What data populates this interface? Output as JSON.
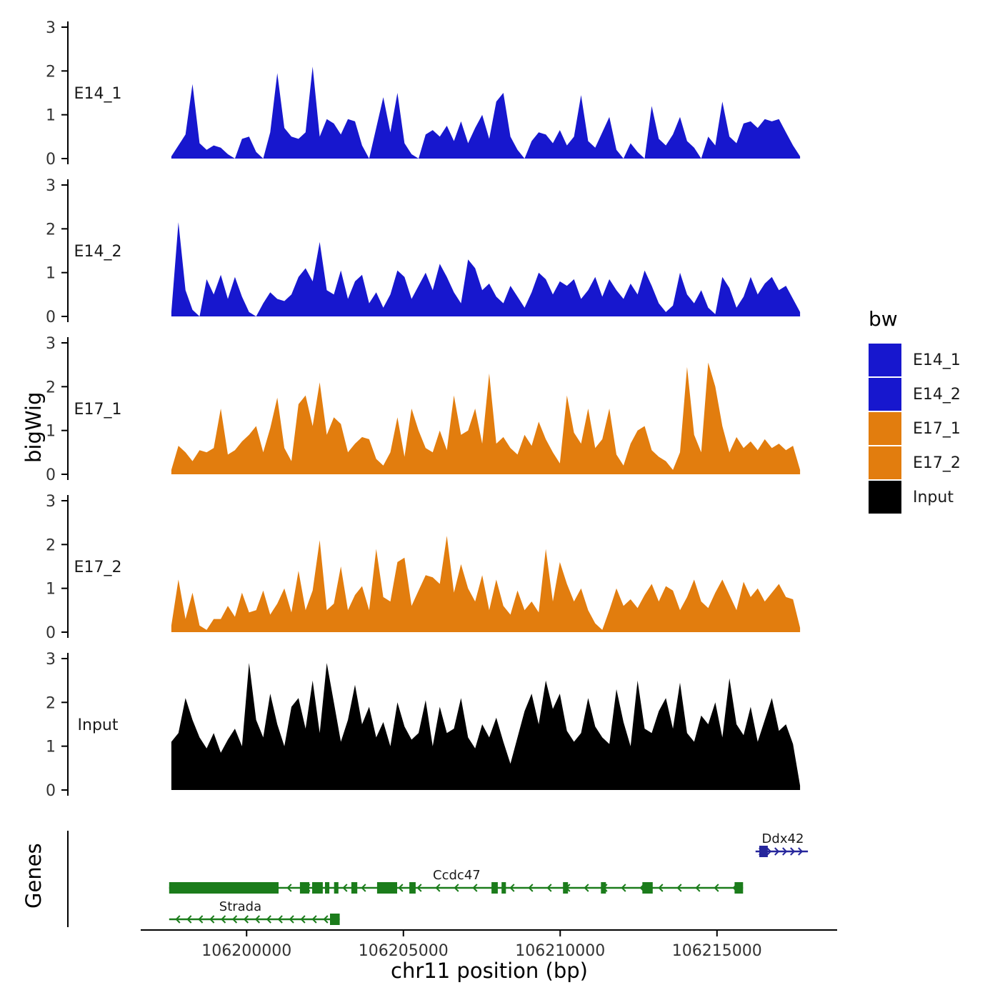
{
  "figure": {
    "ylabel": "bigWig",
    "genes_label": "Genes",
    "xlabel": "chr11 position (bp)"
  },
  "chart_data": {
    "type": "area",
    "title": "",
    "xlabel": "chr11 position (bp)",
    "ylabel": "bigWig",
    "ylim": [
      0,
      3
    ],
    "y_ticks": [
      0,
      1,
      2,
      3
    ],
    "xlim_bp": [
      106194300,
      106218900
    ],
    "signal_x_range_bp": [
      106197600,
      106217650
    ],
    "x_ticks": [
      {
        "bp": 106200000,
        "label": "106200000"
      },
      {
        "bp": 106205000,
        "label": "106205000"
      },
      {
        "bp": 106210000,
        "label": "106210000"
      },
      {
        "bp": 106215000,
        "label": "106215000"
      }
    ],
    "tracks": [
      {
        "name": "E14_1",
        "color": "#1717CE",
        "values": [
          0.05,
          0.3,
          0.55,
          1.7,
          0.35,
          0.2,
          0.3,
          0.25,
          0.1,
          0,
          0.45,
          0.5,
          0.15,
          0,
          0.6,
          1.95,
          0.7,
          0.5,
          0.45,
          0.6,
          2.1,
          0.5,
          0.9,
          0.8,
          0.55,
          0.9,
          0.85,
          0.3,
          0,
          0.7,
          1.4,
          0.6,
          1.5,
          0.35,
          0.1,
          0,
          0.55,
          0.65,
          0.5,
          0.75,
          0.4,
          0.85,
          0.35,
          0.7,
          1.0,
          0.45,
          1.3,
          1.5,
          0.5,
          0.2,
          0,
          0.4,
          0.6,
          0.55,
          0.35,
          0.65,
          0.3,
          0.5,
          1.45,
          0.4,
          0.25,
          0.6,
          0.95,
          0.2,
          0,
          0.35,
          0.15,
          0,
          1.2,
          0.45,
          0.3,
          0.55,
          0.95,
          0.4,
          0.25,
          0,
          0.5,
          0.3,
          1.3,
          0.5,
          0.35,
          0.8,
          0.85,
          0.7,
          0.9,
          0.85,
          0.9,
          0.6,
          0.3,
          0.05
        ]
      },
      {
        "name": "E14_2",
        "color": "#1717CE",
        "values": [
          0.1,
          2.15,
          0.6,
          0.15,
          0,
          0.85,
          0.5,
          0.95,
          0.4,
          0.9,
          0.45,
          0.1,
          0,
          0.3,
          0.55,
          0.4,
          0.35,
          0.5,
          0.9,
          1.1,
          0.8,
          1.7,
          0.6,
          0.5,
          1.05,
          0.4,
          0.8,
          0.95,
          0.3,
          0.55,
          0.2,
          0.5,
          1.05,
          0.9,
          0.4,
          0.7,
          1.0,
          0.6,
          1.2,
          0.9,
          0.55,
          0.3,
          1.3,
          1.1,
          0.6,
          0.75,
          0.45,
          0.3,
          0.7,
          0.45,
          0.2,
          0.55,
          1.0,
          0.85,
          0.5,
          0.8,
          0.7,
          0.85,
          0.4,
          0.6,
          0.9,
          0.45,
          0.85,
          0.6,
          0.4,
          0.75,
          0.5,
          1.05,
          0.7,
          0.3,
          0.1,
          0.25,
          1.0,
          0.5,
          0.3,
          0.6,
          0.2,
          0.05,
          0.9,
          0.65,
          0.2,
          0.45,
          0.9,
          0.5,
          0.75,
          0.9,
          0.6,
          0.7,
          0.4,
          0.1
        ]
      },
      {
        "name": "E17_1",
        "color": "#E27D0E",
        "values": [
          0.1,
          0.65,
          0.5,
          0.3,
          0.55,
          0.5,
          0.6,
          1.5,
          0.45,
          0.55,
          0.75,
          0.9,
          1.1,
          0.5,
          1.05,
          1.75,
          0.6,
          0.3,
          1.6,
          1.8,
          1.1,
          2.1,
          0.9,
          1.3,
          1.15,
          0.5,
          0.7,
          0.85,
          0.8,
          0.35,
          0.2,
          0.5,
          1.3,
          0.4,
          1.5,
          1.0,
          0.6,
          0.5,
          1.0,
          0.55,
          1.8,
          0.9,
          1.0,
          1.5,
          0.7,
          2.3,
          0.7,
          0.85,
          0.6,
          0.45,
          0.9,
          0.65,
          1.2,
          0.8,
          0.5,
          0.25,
          1.8,
          0.95,
          0.7,
          1.5,
          0.6,
          0.8,
          1.5,
          0.45,
          0.2,
          0.7,
          1.0,
          1.1,
          0.55,
          0.4,
          0.3,
          0.1,
          0.5,
          2.45,
          0.9,
          0.5,
          2.55,
          2.0,
          1.1,
          0.5,
          0.85,
          0.6,
          0.75,
          0.55,
          0.8,
          0.6,
          0.7,
          0.55,
          0.65,
          0.1
        ]
      },
      {
        "name": "E17_2",
        "color": "#E27D0E",
        "values": [
          0.15,
          1.2,
          0.3,
          0.9,
          0.15,
          0.05,
          0.3,
          0.3,
          0.6,
          0.35,
          0.9,
          0.45,
          0.5,
          0.95,
          0.4,
          0.65,
          1.0,
          0.45,
          1.4,
          0.5,
          0.95,
          2.1,
          0.5,
          0.65,
          1.5,
          0.5,
          0.85,
          1.05,
          0.5,
          1.9,
          0.8,
          0.7,
          1.6,
          1.7,
          0.6,
          0.95,
          1.3,
          1.25,
          1.1,
          2.2,
          0.9,
          1.55,
          1.0,
          0.7,
          1.3,
          0.5,
          1.2,
          0.6,
          0.4,
          0.95,
          0.5,
          0.7,
          0.45,
          1.9,
          0.7,
          1.6,
          1.1,
          0.7,
          1.0,
          0.5,
          0.2,
          0.05,
          0.5,
          1.0,
          0.6,
          0.75,
          0.55,
          0.85,
          1.1,
          0.7,
          1.05,
          0.95,
          0.5,
          0.8,
          1.2,
          0.7,
          0.55,
          0.9,
          1.2,
          0.85,
          0.5,
          1.15,
          0.8,
          1.0,
          0.7,
          0.9,
          1.1,
          0.8,
          0.75,
          0.1
        ]
      },
      {
        "name": "Input",
        "color": "#000000",
        "values": [
          1.1,
          1.3,
          2.1,
          1.6,
          1.2,
          0.95,
          1.3,
          0.85,
          1.15,
          1.4,
          1.0,
          2.9,
          1.6,
          1.2,
          2.2,
          1.5,
          1.0,
          1.9,
          2.1,
          1.4,
          2.5,
          1.3,
          2.9,
          2.0,
          1.1,
          1.6,
          2.4,
          1.5,
          1.9,
          1.2,
          1.55,
          1.0,
          2.0,
          1.45,
          1.15,
          1.3,
          2.05,
          1.0,
          1.9,
          1.3,
          1.4,
          2.1,
          1.2,
          0.95,
          1.5,
          1.2,
          1.65,
          1.1,
          0.6,
          1.2,
          1.8,
          2.2,
          1.5,
          2.5,
          1.85,
          2.2,
          1.35,
          1.1,
          1.3,
          2.1,
          1.45,
          1.2,
          1.05,
          2.3,
          1.55,
          1.0,
          2.5,
          1.4,
          1.3,
          1.8,
          2.1,
          1.4,
          2.45,
          1.3,
          1.1,
          1.7,
          1.5,
          2.0,
          1.2,
          2.55,
          1.5,
          1.25,
          1.9,
          1.1,
          1.6,
          2.1,
          1.35,
          1.5,
          1.05,
          0.1
        ]
      }
    ],
    "genes_label": "Genes",
    "genes": [
      {
        "name": "Ddx42",
        "strand": "+",
        "color": "#26269C",
        "start_bp": 106216230,
        "end_bp": 106217900,
        "label_bp": 106217100,
        "exons_bp": [
          [
            106216350,
            106216620
          ]
        ]
      },
      {
        "name": "Ccdc47",
        "strand": "-",
        "color": "#1B7C1B",
        "start_bp": 106197530,
        "end_bp": 106215830,
        "label_bp": 106206700,
        "exons_bp": [
          [
            106197530,
            106201020
          ],
          [
            106201700,
            106202000
          ],
          [
            106202090,
            106202430
          ],
          [
            106202500,
            106202640
          ],
          [
            106202790,
            106202930
          ],
          [
            106203340,
            106203530
          ],
          [
            106204160,
            106204800
          ],
          [
            106205190,
            106205390
          ],
          [
            106207810,
            106208010
          ],
          [
            106208130,
            106208270
          ],
          [
            106210090,
            106210250
          ],
          [
            106211300,
            106211460
          ],
          [
            106212620,
            106212950
          ],
          [
            106215560,
            106215830
          ]
        ]
      },
      {
        "name": "Strada",
        "strand": "-",
        "color": "#1B7C1B",
        "start_bp": 106197530,
        "end_bp": 106202970,
        "label_bp": 106199800,
        "exons_bp": [
          [
            106202660,
            106202970
          ]
        ]
      }
    ],
    "legend": {
      "title": "bw",
      "position": "right",
      "entries": [
        {
          "label": "E14_1",
          "color": "#1717CE"
        },
        {
          "label": "E14_2",
          "color": "#1717CE"
        },
        {
          "label": "E17_1",
          "color": "#E27D0E"
        },
        {
          "label": "E17_2",
          "color": "#E27D0E"
        },
        {
          "label": "Input",
          "color": "#000000"
        }
      ]
    }
  }
}
